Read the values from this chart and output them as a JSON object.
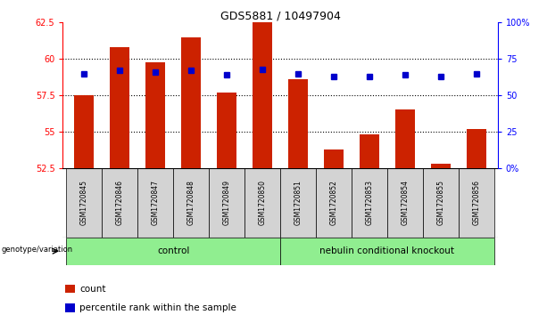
{
  "title": "GDS5881 / 10497904",
  "samples": [
    "GSM1720845",
    "GSM1720846",
    "GSM1720847",
    "GSM1720848",
    "GSM1720849",
    "GSM1720850",
    "GSM1720851",
    "GSM1720852",
    "GSM1720853",
    "GSM1720854",
    "GSM1720855",
    "GSM1720856"
  ],
  "bar_values": [
    57.5,
    60.8,
    59.8,
    61.5,
    57.7,
    62.5,
    58.6,
    53.8,
    54.8,
    56.5,
    52.8,
    55.2
  ],
  "percentile_values": [
    59.0,
    59.2,
    59.1,
    59.2,
    58.9,
    59.3,
    59.0,
    58.8,
    58.8,
    58.9,
    58.8,
    59.0
  ],
  "bar_bottom": 52.5,
  "ylim": [
    52.5,
    62.5
  ],
  "yticks_left": [
    52.5,
    55.0,
    57.5,
    60.0,
    62.5
  ],
  "yticks_right": [
    0,
    25,
    50,
    75,
    100
  ],
  "ytick_labels_left": [
    "52.5",
    "55",
    "57.5",
    "60",
    "62.5"
  ],
  "ytick_labels_right": [
    "0%",
    "25",
    "50",
    "75",
    "100%"
  ],
  "bar_color": "#cc2200",
  "percentile_color": "#0000cc",
  "group_defs": [
    {
      "label": "control",
      "start": 0,
      "end": 6
    },
    {
      "label": "nebulin conditional knockout",
      "start": 6,
      "end": 12
    }
  ],
  "group_row_label": "genotype/variation",
  "legend_count_label": "count",
  "legend_percentile_label": "percentile rank within the sample",
  "tick_area_color": "#d3d3d3",
  "group_color": "#90ee90"
}
